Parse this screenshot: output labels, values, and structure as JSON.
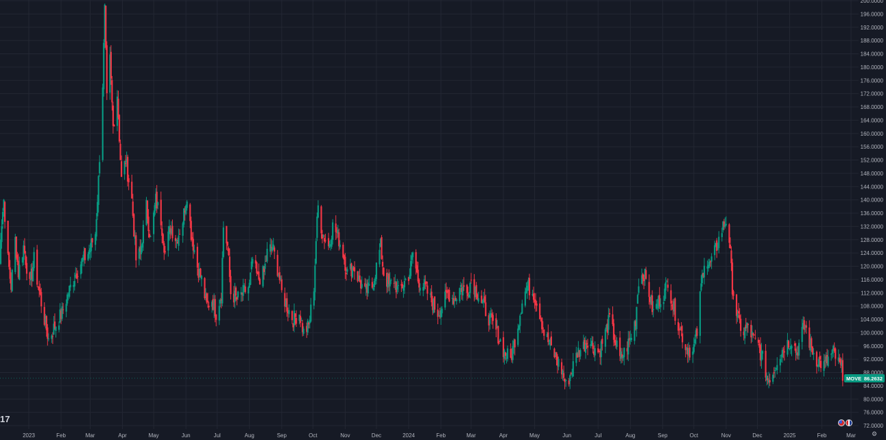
{
  "logo": {
    "text": "17"
  },
  "price_tag": {
    "symbol": "MOVE",
    "value": "86.2632",
    "color": "#089981"
  },
  "colors": {
    "up": "#089981",
    "down": "#f23645",
    "grid": "#232733",
    "background": "#161a25"
  },
  "icons": {
    "session_flags": "us-uk-flags-icon",
    "settings": "settings-icon"
  },
  "chart_data": {
    "type": "candlestick",
    "title": "",
    "xlabel": "",
    "ylabel": "",
    "ylim": [
      70,
      200
    ],
    "y_ticks": [
      "72.0000",
      "76.0000",
      "80.0000",
      "84.0000",
      "88.0000",
      "92.0000",
      "96.0000",
      "100.0000",
      "104.0000",
      "108.0000",
      "112.0000",
      "116.0000",
      "120.0000",
      "124.0000",
      "128.0000",
      "132.0000",
      "136.0000",
      "140.0000",
      "144.0000",
      "148.0000",
      "152.0000",
      "156.0000",
      "160.0000",
      "164.0000",
      "168.0000",
      "172.0000",
      "176.0000",
      "180.0000",
      "184.0000",
      "188.0000",
      "192.0000",
      "196.0000",
      "200.0000"
    ],
    "x_ticks": [
      {
        "label": "2023",
        "date": "2023-01-01"
      },
      {
        "label": "Feb",
        "date": "2023-02-01"
      },
      {
        "label": "Mar",
        "date": "2023-03-01"
      },
      {
        "label": "Apr",
        "date": "2023-04-01"
      },
      {
        "label": "May",
        "date": "2023-05-01"
      },
      {
        "label": "Jun",
        "date": "2023-06-01"
      },
      {
        "label": "Jul",
        "date": "2023-07-01"
      },
      {
        "label": "Aug",
        "date": "2023-08-01"
      },
      {
        "label": "Sep",
        "date": "2023-09-01"
      },
      {
        "label": "Oct",
        "date": "2023-10-01"
      },
      {
        "label": "Nov",
        "date": "2023-11-01"
      },
      {
        "label": "Dec",
        "date": "2023-12-01"
      },
      {
        "label": "2024",
        "date": "2024-01-01"
      },
      {
        "label": "Feb",
        "date": "2024-02-01"
      },
      {
        "label": "Mar",
        "date": "2024-03-01"
      },
      {
        "label": "Apr",
        "date": "2024-04-01"
      },
      {
        "label": "May",
        "date": "2024-05-01"
      },
      {
        "label": "Jun",
        "date": "2024-06-01"
      },
      {
        "label": "Jul",
        "date": "2024-07-01"
      },
      {
        "label": "Aug",
        "date": "2024-08-01"
      },
      {
        "label": "Sep",
        "date": "2024-09-01"
      },
      {
        "label": "Oct",
        "date": "2024-10-01"
      },
      {
        "label": "Nov",
        "date": "2024-11-01"
      },
      {
        "label": "Dec",
        "date": "2024-12-01"
      },
      {
        "label": "2025",
        "date": "2025-01-01"
      },
      {
        "label": "Feb",
        "date": "2025-02-01"
      },
      {
        "label": "Mar",
        "date": "2025-03-01"
      }
    ],
    "anchors": [
      [
        "2022-12-01",
        118
      ],
      [
        "2022-12-05",
        130
      ],
      [
        "2022-12-08",
        140
      ],
      [
        "2022-12-12",
        122
      ],
      [
        "2022-12-15",
        114
      ],
      [
        "2022-12-19",
        128
      ],
      [
        "2022-12-22",
        118
      ],
      [
        "2022-12-27",
        126
      ],
      [
        "2023-01-02",
        114
      ],
      [
        "2023-01-06",
        122
      ],
      [
        "2023-01-10",
        114
      ],
      [
        "2023-01-16",
        104
      ],
      [
        "2023-01-20",
        98
      ],
      [
        "2023-01-26",
        102
      ],
      [
        "2023-02-02",
        106
      ],
      [
        "2023-02-08",
        112
      ],
      [
        "2023-02-14",
        117
      ],
      [
        "2023-02-20",
        121
      ],
      [
        "2023-02-27",
        124
      ],
      [
        "2023-03-06",
        130
      ],
      [
        "2023-03-09",
        146
      ],
      [
        "2023-03-13",
        175
      ],
      [
        "2023-03-15",
        197
      ],
      [
        "2023-03-17",
        170
      ],
      [
        "2023-03-20",
        182
      ],
      [
        "2023-03-23",
        162
      ],
      [
        "2023-03-27",
        172
      ],
      [
        "2023-03-31",
        146
      ],
      [
        "2023-04-04",
        152
      ],
      [
        "2023-04-10",
        140
      ],
      [
        "2023-04-14",
        122
      ],
      [
        "2023-04-18",
        124
      ],
      [
        "2023-04-24",
        138
      ],
      [
        "2023-04-28",
        128
      ],
      [
        "2023-05-03",
        140
      ],
      [
        "2023-05-08",
        134
      ],
      [
        "2023-05-12",
        124
      ],
      [
        "2023-05-17",
        132
      ],
      [
        "2023-05-23",
        128
      ],
      [
        "2023-05-29",
        134
      ],
      [
        "2023-06-02",
        142
      ],
      [
        "2023-06-06",
        130
      ],
      [
        "2023-06-12",
        120
      ],
      [
        "2023-06-16",
        116
      ],
      [
        "2023-06-21",
        108
      ],
      [
        "2023-06-26",
        110
      ],
      [
        "2023-06-30",
        106
      ],
      [
        "2023-07-05",
        112
      ],
      [
        "2023-07-07",
        132
      ],
      [
        "2023-07-11",
        126
      ],
      [
        "2023-07-14",
        112
      ],
      [
        "2023-07-20",
        110
      ],
      [
        "2023-07-26",
        112
      ],
      [
        "2023-08-01",
        114
      ],
      [
        "2023-08-04",
        122
      ],
      [
        "2023-08-09",
        116
      ],
      [
        "2023-08-15",
        118
      ],
      [
        "2023-08-18",
        124
      ],
      [
        "2023-08-23",
        126
      ],
      [
        "2023-08-29",
        118
      ],
      [
        "2023-09-01",
        112
      ],
      [
        "2023-09-06",
        108
      ],
      [
        "2023-09-12",
        104
      ],
      [
        "2023-09-18",
        106
      ],
      [
        "2023-09-22",
        100
      ],
      [
        "2023-09-27",
        102
      ],
      [
        "2023-10-02",
        114
      ],
      [
        "2023-10-04",
        128
      ],
      [
        "2023-10-06",
        138
      ],
      [
        "2023-10-10",
        130
      ],
      [
        "2023-10-16",
        126
      ],
      [
        "2023-10-20",
        132
      ],
      [
        "2023-10-24",
        130
      ],
      [
        "2023-10-30",
        124
      ],
      [
        "2023-11-03",
        118
      ],
      [
        "2023-11-09",
        120
      ],
      [
        "2023-11-14",
        116
      ],
      [
        "2023-11-20",
        112
      ],
      [
        "2023-11-27",
        114
      ],
      [
        "2023-12-01",
        120
      ],
      [
        "2023-12-05",
        126
      ],
      [
        "2023-12-08",
        118
      ],
      [
        "2023-12-13",
        114
      ],
      [
        "2023-12-18",
        116
      ],
      [
        "2023-12-22",
        112
      ],
      [
        "2024-01-02",
        118
      ],
      [
        "2024-01-05",
        124
      ],
      [
        "2024-01-10",
        116
      ],
      [
        "2024-01-16",
        114
      ],
      [
        "2024-01-22",
        110
      ],
      [
        "2024-01-29",
        106
      ],
      [
        "2024-02-02",
        108
      ],
      [
        "2024-02-08",
        112
      ],
      [
        "2024-02-14",
        110
      ],
      [
        "2024-02-20",
        114
      ],
      [
        "2024-02-26",
        112
      ],
      [
        "2024-03-01",
        116
      ],
      [
        "2024-03-07",
        112
      ],
      [
        "2024-03-13",
        108
      ],
      [
        "2024-03-19",
        104
      ],
      [
        "2024-03-26",
        100
      ],
      [
        "2024-04-02",
        94
      ],
      [
        "2024-04-08",
        92
      ],
      [
        "2024-04-12",
        98
      ],
      [
        "2024-04-16",
        104
      ],
      [
        "2024-04-19",
        110
      ],
      [
        "2024-04-24",
        114
      ],
      [
        "2024-04-30",
        112
      ],
      [
        "2024-05-06",
        106
      ],
      [
        "2024-05-10",
        100
      ],
      [
        "2024-05-16",
        96
      ],
      [
        "2024-05-22",
        92
      ],
      [
        "2024-05-28",
        88
      ],
      [
        "2024-05-31",
        84
      ],
      [
        "2024-06-05",
        88
      ],
      [
        "2024-06-11",
        94
      ],
      [
        "2024-06-17",
        96
      ],
      [
        "2024-06-21",
        98
      ],
      [
        "2024-06-26",
        96
      ],
      [
        "2024-07-02",
        94
      ],
      [
        "2024-07-08",
        100
      ],
      [
        "2024-07-12",
        104
      ],
      [
        "2024-07-17",
        98
      ],
      [
        "2024-07-22",
        92
      ],
      [
        "2024-07-26",
        94
      ],
      [
        "2024-08-01",
        98
      ],
      [
        "2024-08-06",
        104
      ],
      [
        "2024-08-09",
        116
      ],
      [
        "2024-08-14",
        118
      ],
      [
        "2024-08-19",
        112
      ],
      [
        "2024-08-23",
        106
      ],
      [
        "2024-08-29",
        110
      ],
      [
        "2024-09-03",
        112
      ],
      [
        "2024-09-06",
        116
      ],
      [
        "2024-09-11",
        108
      ],
      [
        "2024-09-17",
        102
      ],
      [
        "2024-09-23",
        96
      ],
      [
        "2024-09-30",
        94
      ],
      [
        "2024-10-04",
        100
      ],
      [
        "2024-10-08",
        114
      ],
      [
        "2024-10-11",
        122
      ],
      [
        "2024-10-16",
        120
      ],
      [
        "2024-10-21",
        124
      ],
      [
        "2024-10-25",
        128
      ],
      [
        "2024-10-29",
        132
      ],
      [
        "2024-11-01",
        134
      ],
      [
        "2024-11-04",
        128
      ],
      [
        "2024-11-07",
        114
      ],
      [
        "2024-11-12",
        104
      ],
      [
        "2024-11-18",
        100
      ],
      [
        "2024-11-22",
        102
      ],
      [
        "2024-11-27",
        98
      ],
      [
        "2024-12-02",
        96
      ],
      [
        "2024-12-06",
        92
      ],
      [
        "2024-12-11",
        86
      ],
      [
        "2024-12-16",
        88
      ],
      [
        "2024-12-20",
        92
      ],
      [
        "2024-12-27",
        96
      ],
      [
        "2025-01-03",
        98
      ],
      [
        "2025-01-08",
        94
      ],
      [
        "2025-01-13",
        100
      ],
      [
        "2025-01-16",
        102
      ],
      [
        "2025-01-21",
        96
      ],
      [
        "2025-01-27",
        92
      ],
      [
        "2025-02-03",
        90
      ],
      [
        "2025-02-07",
        92
      ],
      [
        "2025-02-12",
        94
      ],
      [
        "2025-02-18",
        90
      ],
      [
        "2025-02-21",
        88
      ],
      [
        "2025-02-25",
        85
      ],
      [
        "2025-02-28",
        86.2632
      ]
    ]
  }
}
